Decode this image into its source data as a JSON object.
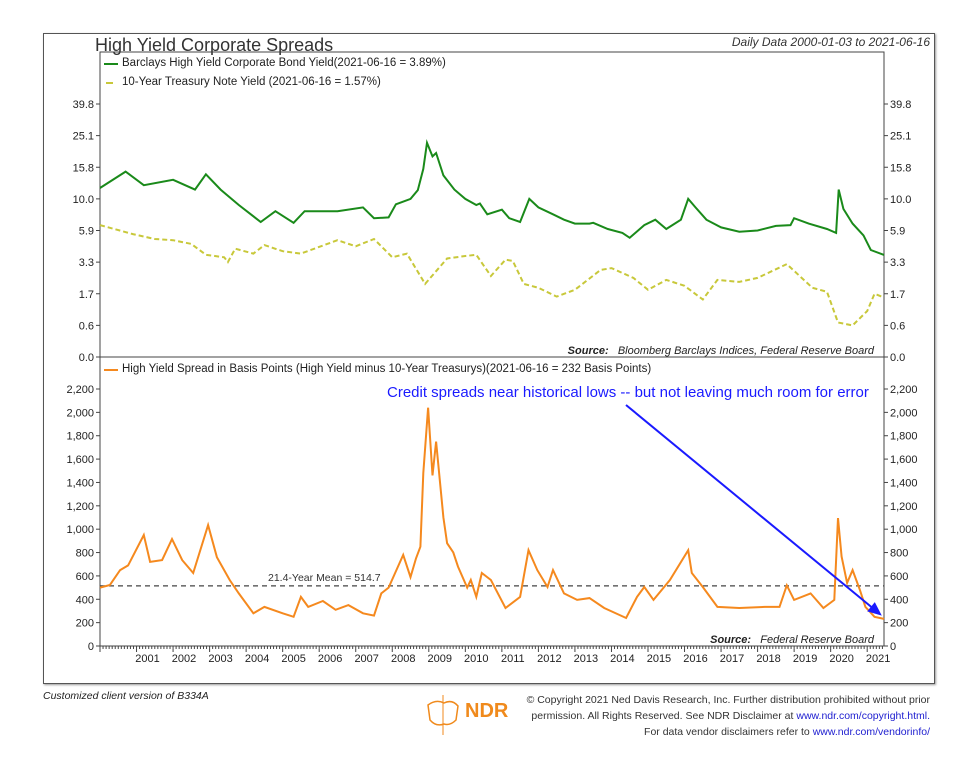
{
  "header": {
    "title": "High Yield Corporate Spreads",
    "date_range": "Daily Data 2000-01-03 to 2021-06-16"
  },
  "colors": {
    "high_yield": "#1a8a1a",
    "treasury": "#c8c83a",
    "spread": "#f5891e",
    "annotation": "#1a1aff",
    "mean_line": "#444444"
  },
  "chart_data": [
    {
      "type": "line",
      "panel": "top",
      "y_scale": "log-like (evenly spaced ticks)",
      "yticks": [
        "39.8",
        "25.1",
        "15.8",
        "10.0",
        "5.9",
        "3.3",
        "1.7",
        "0.6",
        "0.0"
      ],
      "ytick_values": [
        39.8,
        25.1,
        15.8,
        10.0,
        5.9,
        3.3,
        1.7,
        0.6,
        0.0
      ],
      "xlim": [
        2000.0,
        2021.46
      ],
      "source_label": "Source:",
      "source": "Bloomberg Barclays Indices, Federal Reserve Board",
      "series": [
        {
          "name": "Barclays High Yield Corporate Bond Yield",
          "legend": "Barclays High Yield Corporate Bond Yield(2021-06-16 = 3.89%)",
          "style": "solid",
          "x": [
            2000.0,
            2000.7,
            2001.2,
            2002.0,
            2002.6,
            2002.9,
            2003.3,
            2003.8,
            2004.4,
            2004.8,
            2005.3,
            2005.6,
            2006.5,
            2007.2,
            2007.5,
            2007.9,
            2008.1,
            2008.5,
            2008.7,
            2008.85,
            2008.95,
            2009.1,
            2009.2,
            2009.4,
            2009.7,
            2010.0,
            2010.3,
            2010.4,
            2010.6,
            2011.0,
            2011.2,
            2011.5,
            2011.75,
            2012.0,
            2012.4,
            2012.7,
            2013.0,
            2013.4,
            2013.5,
            2013.9,
            2014.3,
            2014.5,
            2014.9,
            2015.2,
            2015.5,
            2015.9,
            2016.1,
            2016.3,
            2016.6,
            2017.0,
            2017.5,
            2018.0,
            2018.5,
            2018.9,
            2019.0,
            2019.4,
            2019.9,
            2020.15,
            2020.22,
            2020.35,
            2020.6,
            2020.9,
            2021.1,
            2021.46
          ],
          "y": [
            12.0,
            15.0,
            12.5,
            13.5,
            11.7,
            14.5,
            11.7,
            9.2,
            7.0,
            8.4,
            6.9,
            8.4,
            8.4,
            8.9,
            7.5,
            7.6,
            9.3,
            10.0,
            11.6,
            15.5,
            23.0,
            19.0,
            20.0,
            14.3,
            11.7,
            10.0,
            9.2,
            9.4,
            8.0,
            8.6,
            7.5,
            7.0,
            10.0,
            8.9,
            8.0,
            7.3,
            6.8,
            6.8,
            6.9,
            6.1,
            5.7,
            5.3,
            6.6,
            7.3,
            6.1,
            7.3,
            10.0,
            8.9,
            7.3,
            6.3,
            5.8,
            5.9,
            6.5,
            6.6,
            7.5,
            6.8,
            6.1,
            5.7,
            11.7,
            8.7,
            6.8,
            5.5,
            4.3,
            3.89
          ]
        },
        {
          "name": "10-Year Treasury Note Yield",
          "legend": "10-Year Treasury Note Yield (2021-06-16 = 1.57%)",
          "style": "dashed",
          "x": [
            2000.0,
            2000.9,
            2001.5,
            2002.0,
            2002.5,
            2002.9,
            2003.4,
            2003.5,
            2003.7,
            2004.2,
            2004.5,
            2005.0,
            2005.5,
            2006.5,
            2007.0,
            2007.5,
            2008.0,
            2008.4,
            2008.9,
            2009.5,
            2010.0,
            2010.3,
            2010.7,
            2011.1,
            2011.3,
            2011.6,
            2012.0,
            2012.5,
            2013.0,
            2013.7,
            2014.0,
            2014.6,
            2015.0,
            2015.5,
            2016.0,
            2016.5,
            2016.9,
            2017.5,
            2018.0,
            2018.8,
            2019.5,
            2019.9,
            2020.2,
            2020.6,
            2021.0,
            2021.2,
            2021.46
          ],
          "y": [
            6.6,
            5.6,
            5.2,
            5.1,
            4.8,
            3.9,
            3.7,
            3.3,
            4.4,
            4.0,
            4.7,
            4.2,
            4.0,
            5.1,
            4.6,
            5.2,
            3.7,
            4.0,
            2.2,
            3.6,
            3.8,
            3.9,
            2.6,
            3.5,
            3.4,
            2.2,
            2.0,
            1.6,
            1.9,
            2.9,
            3.0,
            2.5,
            1.9,
            2.4,
            2.1,
            1.5,
            2.4,
            2.3,
            2.5,
            3.2,
            2.0,
            1.8,
            0.7,
            0.6,
            1.1,
            1.7,
            1.57
          ]
        }
      ]
    },
    {
      "type": "line",
      "panel": "bottom",
      "ylim": [
        0,
        2200
      ],
      "yticks": [
        "2,200",
        "2,000",
        "1,800",
        "1,600",
        "1,400",
        "1,200",
        "1,000",
        "800",
        "600",
        "400",
        "200",
        "0"
      ],
      "xlim": [
        2000.0,
        2021.46
      ],
      "xticks": [
        "2001",
        "2002",
        "2003",
        "2004",
        "2005",
        "2006",
        "2007",
        "2008",
        "2009",
        "2010",
        "2011",
        "2012",
        "2013",
        "2014",
        "2015",
        "2016",
        "2017",
        "2018",
        "2019",
        "2020",
        "2021"
      ],
      "mean": 514.7,
      "mean_label": "21.4-Year Mean = 514.7",
      "annotation": "Credit spreads near historical lows -- but not leaving much room for error",
      "source_label": "Source:",
      "source": "Federal Reserve Board",
      "series": [
        {
          "name": "High Yield Spread in Basis Points",
          "legend": "High Yield Spread in Basis Points (High Yield minus 10-Year Treasurys)(2021-06-16 = 232 Basis Points)",
          "x": [
            2000.0,
            2000.27,
            2000.55,
            2000.77,
            2001.2,
            2001.37,
            2001.7,
            2001.97,
            2002.25,
            2002.55,
            2002.96,
            2003.2,
            2003.55,
            2003.8,
            2004.2,
            2004.5,
            2005.0,
            2005.3,
            2005.5,
            2005.7,
            2006.1,
            2006.45,
            2006.8,
            2007.2,
            2007.5,
            2007.7,
            2007.9,
            2008.3,
            2008.5,
            2008.65,
            2008.77,
            2008.85,
            2008.98,
            2009.1,
            2009.2,
            2009.4,
            2009.5,
            2009.67,
            2009.8,
            2010.05,
            2010.15,
            2010.3,
            2010.45,
            2010.7,
            2011.1,
            2011.5,
            2011.73,
            2011.97,
            2012.25,
            2012.4,
            2012.7,
            2013.06,
            2013.4,
            2013.8,
            2014.4,
            2014.7,
            2014.9,
            2015.15,
            2015.6,
            2016.1,
            2016.2,
            2016.5,
            2016.9,
            2017.5,
            2018.2,
            2018.6,
            2018.8,
            2019.0,
            2019.45,
            2019.8,
            2020.1,
            2020.2,
            2020.3,
            2020.45,
            2020.6,
            2020.8,
            2020.95,
            2021.2,
            2021.46
          ],
          "y": [
            500,
            522,
            650,
            690,
            950,
            720,
            735,
            915,
            735,
            625,
            1035,
            760,
            565,
            450,
            280,
            335,
            280,
            250,
            420,
            335,
            385,
            310,
            350,
            280,
            260,
            450,
            500,
            780,
            590,
            750,
            850,
            1480,
            2040,
            1460,
            1750,
            1100,
            880,
            800,
            680,
            500,
            565,
            420,
            625,
            565,
            325,
            420,
            820,
            650,
            505,
            650,
            450,
            395,
            410,
            325,
            240,
            420,
            505,
            395,
            565,
            820,
            625,
            505,
            335,
            325,
            335,
            335,
            520,
            395,
            450,
            325,
            395,
            1095,
            765,
            540,
            650,
            480,
            335,
            250,
            232
          ]
        }
      ]
    }
  ],
  "footer": {
    "client_note": "Customized client version of B334A",
    "logo_text": "NDR",
    "copyright_line1": "© Copyright 2021 Ned Davis Research, Inc. Further distribution prohibited without prior",
    "copyright_line2": "permission. All Rights Reserved. See NDR Disclaimer at",
    "copyright_link": "www.ndr.com/copyright.html.",
    "vendor_line": "For data vendor disclaimers refer to",
    "vendor_link": "www.ndr.com/vendorinfo/"
  }
}
